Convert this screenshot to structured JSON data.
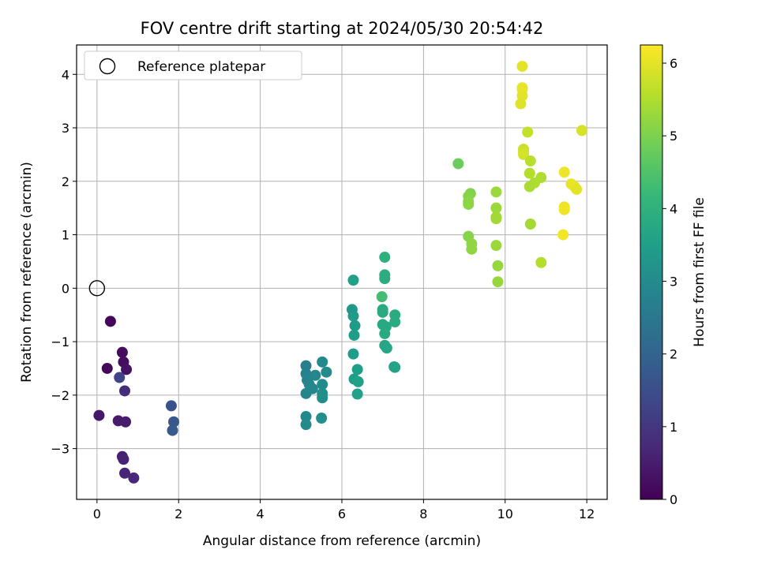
{
  "chart_data": {
    "type": "scatter",
    "title": "FOV centre drift starting at 2024/05/30 20:54:42",
    "xlabel": "Angular distance from reference (arcmin)",
    "ylabel": "Rotation from reference (arcmin)",
    "xlim": [
      -0.5,
      12.5
    ],
    "ylim": [
      -3.95,
      4.55
    ],
    "xticks": [
      0,
      2,
      4,
      6,
      8,
      10,
      12
    ],
    "yticks": [
      -3,
      -2,
      -1,
      0,
      1,
      2,
      3,
      4
    ],
    "grid": true,
    "legend": {
      "placement": "top-left",
      "label": "Reference platepar"
    },
    "reference_point": {
      "x": 0,
      "y": 0
    },
    "colorbar": {
      "label": "Hours from first FF file",
      "min": 0,
      "max": 6.25,
      "ticks": [
        0,
        1,
        2,
        3,
        4,
        5,
        6
      ],
      "colormap": "viridis"
    },
    "colormap_stops": [
      "#440154",
      "#482878",
      "#3e4989",
      "#31688e",
      "#26828e",
      "#1f9e89",
      "#35b779",
      "#6ece58",
      "#b5de2b",
      "#fde725"
    ],
    "points": [
      {
        "x": 0.33,
        "y": -0.62,
        "c": 0.1
      },
      {
        "x": 0.25,
        "y": -1.5,
        "c": 0.15
      },
      {
        "x": 0.62,
        "y": -1.2,
        "c": 0.2
      },
      {
        "x": 0.65,
        "y": -1.38,
        "c": 0.25
      },
      {
        "x": 0.72,
        "y": -1.52,
        "c": 0.3
      },
      {
        "x": 0.05,
        "y": -2.38,
        "c": 0.4
      },
      {
        "x": 0.52,
        "y": -2.48,
        "c": 0.45
      },
      {
        "x": 0.7,
        "y": -2.5,
        "c": 0.5
      },
      {
        "x": 0.62,
        "y": -3.15,
        "c": 0.55
      },
      {
        "x": 0.65,
        "y": -3.2,
        "c": 0.6
      },
      {
        "x": 0.68,
        "y": -3.46,
        "c": 0.65
      },
      {
        "x": 0.9,
        "y": -3.55,
        "c": 0.7
      },
      {
        "x": 0.68,
        "y": -1.92,
        "c": 0.8
      },
      {
        "x": 0.55,
        "y": -1.67,
        "c": 1.3
      },
      {
        "x": 1.82,
        "y": -2.2,
        "c": 1.6
      },
      {
        "x": 1.88,
        "y": -2.5,
        "c": 1.7
      },
      {
        "x": 1.85,
        "y": -2.66,
        "c": 1.75
      },
      {
        "x": 5.12,
        "y": -1.45,
        "c": 2.7
      },
      {
        "x": 5.12,
        "y": -1.6,
        "c": 2.75
      },
      {
        "x": 5.15,
        "y": -1.72,
        "c": 2.8
      },
      {
        "x": 5.2,
        "y": -1.8,
        "c": 2.85
      },
      {
        "x": 5.12,
        "y": -1.97,
        "c": 2.85
      },
      {
        "x": 5.28,
        "y": -1.88,
        "c": 2.9
      },
      {
        "x": 5.35,
        "y": -1.63,
        "c": 2.9
      },
      {
        "x": 5.52,
        "y": -1.38,
        "c": 2.95
      },
      {
        "x": 5.62,
        "y": -1.57,
        "c": 3.0
      },
      {
        "x": 5.52,
        "y": -1.8,
        "c": 3.0
      },
      {
        "x": 5.52,
        "y": -1.97,
        "c": 3.05
      },
      {
        "x": 5.52,
        "y": -2.05,
        "c": 3.05
      },
      {
        "x": 5.12,
        "y": -2.4,
        "c": 2.95
      },
      {
        "x": 5.12,
        "y": -2.55,
        "c": 3.0
      },
      {
        "x": 5.5,
        "y": -2.43,
        "c": 3.1
      },
      {
        "x": 6.28,
        "y": 0.15,
        "c": 3.55
      },
      {
        "x": 6.25,
        "y": -0.4,
        "c": 3.35
      },
      {
        "x": 6.28,
        "y": -0.52,
        "c": 3.4
      },
      {
        "x": 6.32,
        "y": -0.7,
        "c": 3.4
      },
      {
        "x": 6.3,
        "y": -0.88,
        "c": 3.45
      },
      {
        "x": 6.28,
        "y": -1.23,
        "c": 3.45
      },
      {
        "x": 6.38,
        "y": -1.52,
        "c": 3.5
      },
      {
        "x": 6.3,
        "y": -1.7,
        "c": 3.5
      },
      {
        "x": 6.4,
        "y": -1.75,
        "c": 3.55
      },
      {
        "x": 6.38,
        "y": -1.98,
        "c": 3.55
      },
      {
        "x": 7.05,
        "y": 0.58,
        "c": 3.95
      },
      {
        "x": 7.05,
        "y": 0.25,
        "c": 3.9
      },
      {
        "x": 7.05,
        "y": 0.18,
        "c": 3.9
      },
      {
        "x": 6.98,
        "y": -0.16,
        "c": 4.35
      },
      {
        "x": 7.0,
        "y": -0.4,
        "c": 3.8
      },
      {
        "x": 7.0,
        "y": -0.45,
        "c": 3.8
      },
      {
        "x": 7.3,
        "y": -0.5,
        "c": 3.85
      },
      {
        "x": 7.3,
        "y": -0.63,
        "c": 3.85
      },
      {
        "x": 7.0,
        "y": -0.68,
        "c": 3.75
      },
      {
        "x": 7.08,
        "y": -0.72,
        "c": 3.75
      },
      {
        "x": 7.05,
        "y": -0.85,
        "c": 3.8
      },
      {
        "x": 7.05,
        "y": -1.07,
        "c": 3.7
      },
      {
        "x": 7.1,
        "y": -1.12,
        "c": 3.7
      },
      {
        "x": 7.28,
        "y": -1.47,
        "c": 3.65
      },
      {
        "x": 7.3,
        "y": -1.48,
        "c": 3.65
      },
      {
        "x": 8.85,
        "y": 2.33,
        "c": 4.8
      },
      {
        "x": 9.15,
        "y": 1.77,
        "c": 5.05
      },
      {
        "x": 9.1,
        "y": 1.72,
        "c": 5.1
      },
      {
        "x": 9.1,
        "y": 1.62,
        "c": 5.15
      },
      {
        "x": 9.1,
        "y": 1.57,
        "c": 5.15
      },
      {
        "x": 9.1,
        "y": 0.97,
        "c": 5.1
      },
      {
        "x": 9.18,
        "y": 0.83,
        "c": 5.2
      },
      {
        "x": 9.18,
        "y": 0.73,
        "c": 5.2
      },
      {
        "x": 9.78,
        "y": 1.8,
        "c": 5.3
      },
      {
        "x": 9.78,
        "y": 1.5,
        "c": 5.3
      },
      {
        "x": 9.78,
        "y": 1.33,
        "c": 5.35
      },
      {
        "x": 9.78,
        "y": 1.3,
        "c": 5.35
      },
      {
        "x": 9.78,
        "y": 0.8,
        "c": 5.3
      },
      {
        "x": 9.82,
        "y": 0.42,
        "c": 5.25
      },
      {
        "x": 9.82,
        "y": 0.12,
        "c": 5.25
      },
      {
        "x": 10.42,
        "y": 4.15,
        "c": 6.0
      },
      {
        "x": 10.42,
        "y": 3.75,
        "c": 6.05
      },
      {
        "x": 10.42,
        "y": 3.72,
        "c": 6.05
      },
      {
        "x": 10.42,
        "y": 3.6,
        "c": 6.0
      },
      {
        "x": 10.38,
        "y": 3.45,
        "c": 5.95
      },
      {
        "x": 10.55,
        "y": 2.92,
        "c": 5.7
      },
      {
        "x": 10.45,
        "y": 2.6,
        "c": 5.75
      },
      {
        "x": 10.45,
        "y": 2.55,
        "c": 5.8
      },
      {
        "x": 10.45,
        "y": 2.5,
        "c": 5.85
      },
      {
        "x": 10.62,
        "y": 2.38,
        "c": 5.6
      },
      {
        "x": 10.6,
        "y": 2.15,
        "c": 5.55
      },
      {
        "x": 10.88,
        "y": 2.07,
        "c": 5.5
      },
      {
        "x": 10.72,
        "y": 1.97,
        "c": 5.5
      },
      {
        "x": 10.6,
        "y": 1.9,
        "c": 5.45
      },
      {
        "x": 10.62,
        "y": 1.2,
        "c": 5.4
      },
      {
        "x": 10.88,
        "y": 0.48,
        "c": 5.55
      },
      {
        "x": 11.88,
        "y": 2.95,
        "c": 5.85
      },
      {
        "x": 11.45,
        "y": 2.17,
        "c": 6.1
      },
      {
        "x": 11.62,
        "y": 1.95,
        "c": 6.05
      },
      {
        "x": 11.7,
        "y": 1.9,
        "c": 6.05
      },
      {
        "x": 11.75,
        "y": 1.85,
        "c": 6.0
      },
      {
        "x": 11.45,
        "y": 1.52,
        "c": 6.1
      },
      {
        "x": 11.45,
        "y": 1.47,
        "c": 6.1
      },
      {
        "x": 11.42,
        "y": 1.0,
        "c": 6.15
      }
    ]
  }
}
